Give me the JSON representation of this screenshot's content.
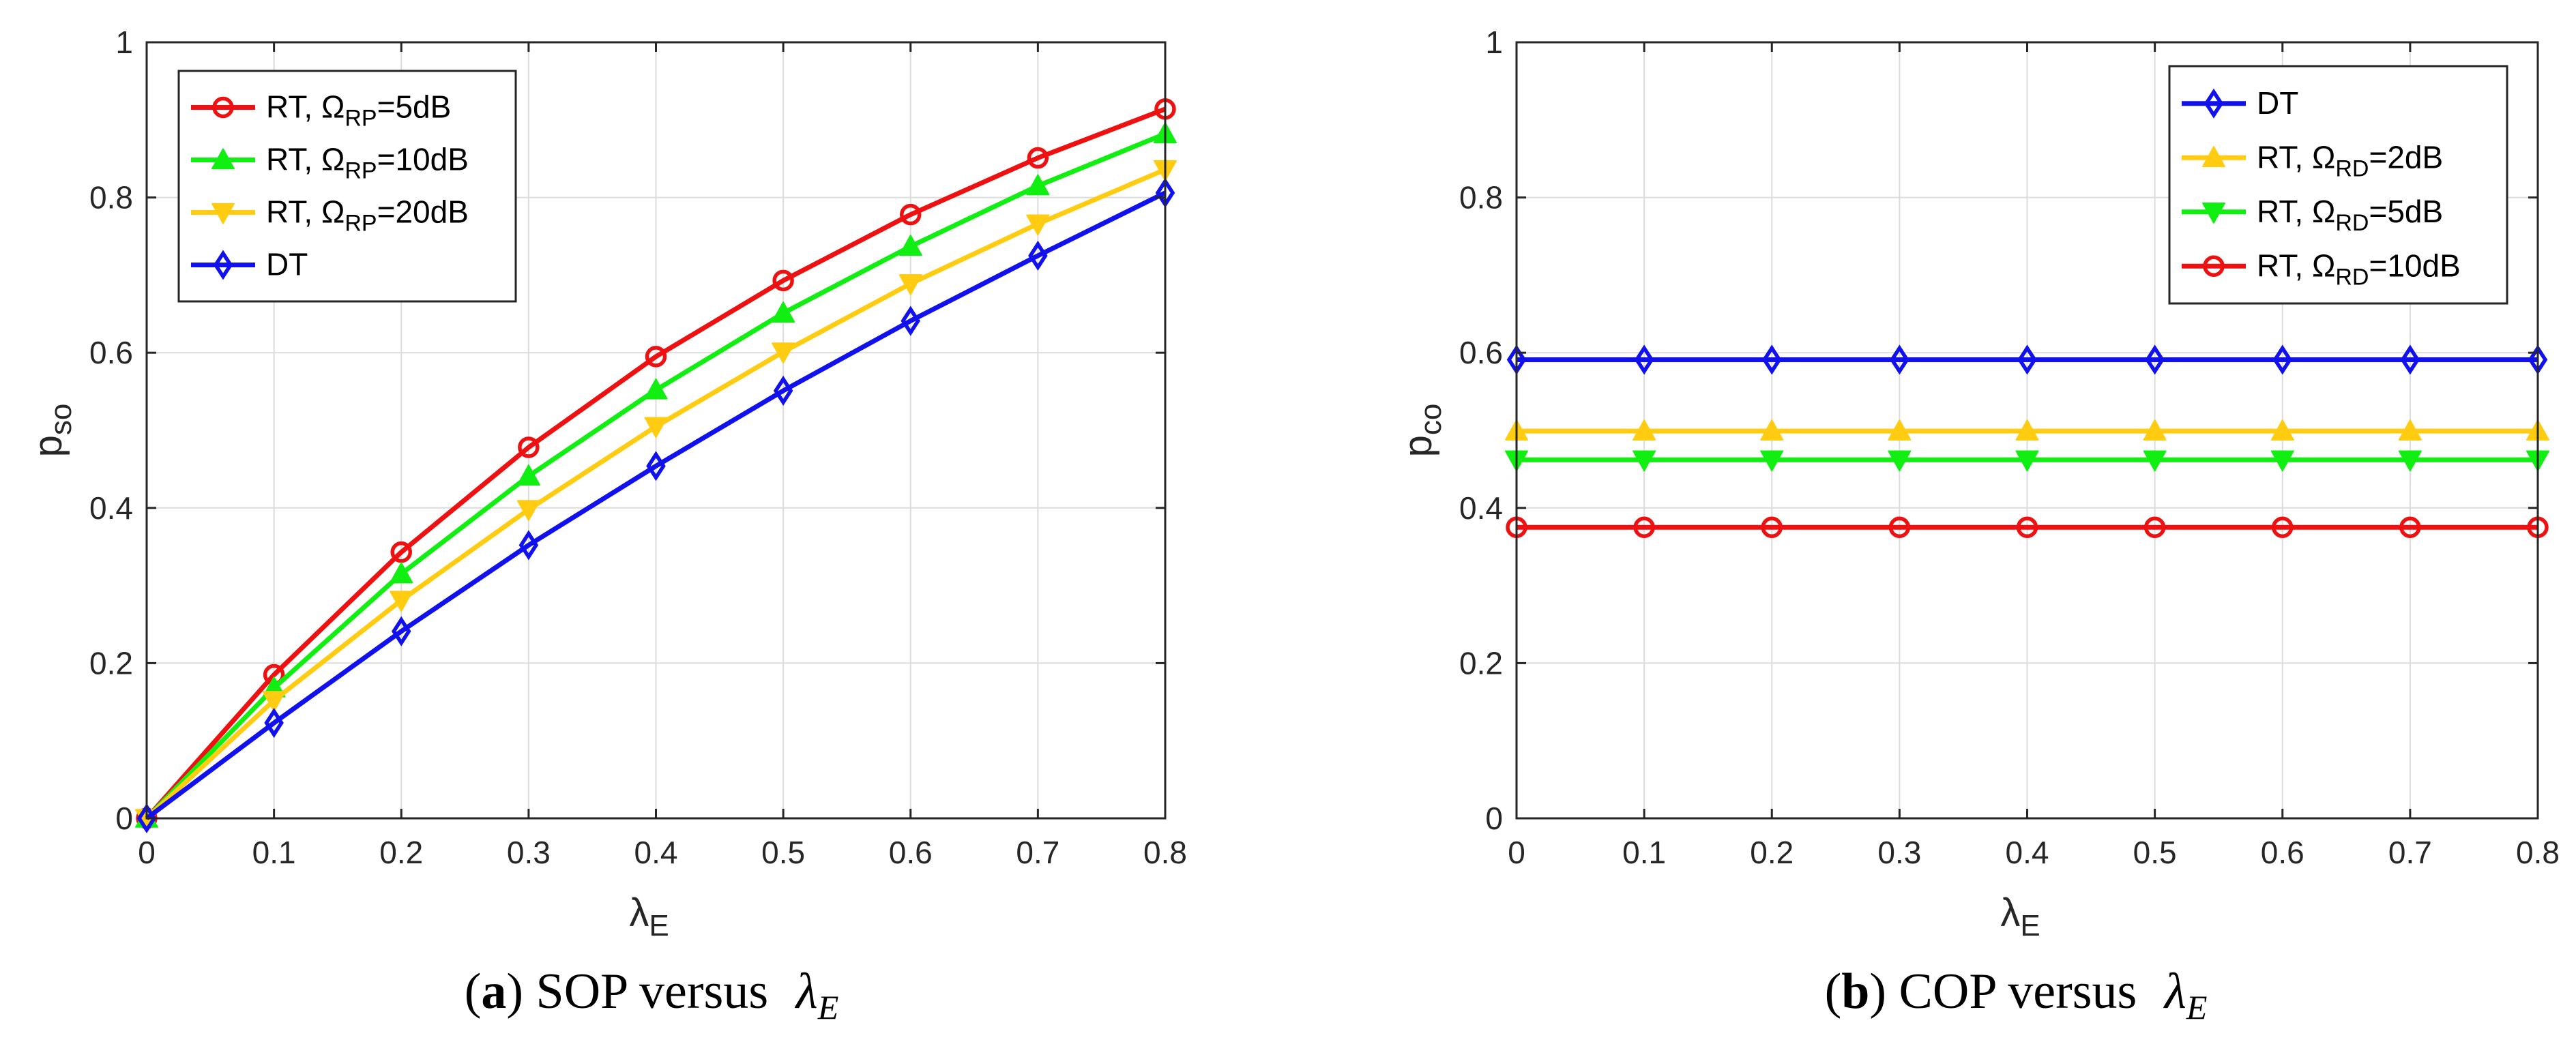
{
  "chart_data": [
    {
      "type": "line",
      "panel_label": "a",
      "caption_text": " SOP versus ",
      "caption_symbol": "λ",
      "caption_sub": "E",
      "xlabel": "λ",
      "xlabel_sub": "E",
      "ylabel": "p",
      "ylabel_sub": "so",
      "xlim": [
        0,
        0.8
      ],
      "ylim": [
        0,
        1
      ],
      "x_ticks": [
        "0",
        "0.1",
        "0.2",
        "0.3",
        "0.4",
        "0.5",
        "0.6",
        "0.7",
        "0.8"
      ],
      "y_ticks": [
        "0",
        "0.2",
        "0.4",
        "0.6",
        "0.8",
        "1"
      ],
      "grid": true,
      "legend_position": "top-left",
      "x": [
        0,
        0.1,
        0.2,
        0.3,
        0.4,
        0.5,
        0.6,
        0.7,
        0.8
      ],
      "series": [
        {
          "name": "RT,  Ω=5dB",
          "label_parts": [
            "RT,  Ω",
            "RP",
            "=5dB"
          ],
          "color": "#ee1111",
          "marker": "circle",
          "values": [
            0,
            0.185,
            0.343,
            0.478,
            0.595,
            0.693,
            0.778,
            0.851,
            0.914
          ]
        },
        {
          "name": "RT, Ω=10dB",
          "label_parts": [
            "RT, Ω",
            "RP",
            "=10dB"
          ],
          "color": "#11ee11",
          "marker": "triangle-up",
          "values": [
            0,
            0.168,
            0.315,
            0.441,
            0.552,
            0.651,
            0.737,
            0.815,
            0.882
          ]
        },
        {
          "name": "RT, Ω=20dB",
          "label_parts": [
            "RT, Ω",
            "RP",
            "=20dB"
          ],
          "color": "#ffcc11",
          "marker": "triangle-down",
          "values": [
            0,
            0.152,
            0.281,
            0.398,
            0.505,
            0.601,
            0.689,
            0.766,
            0.836
          ]
        },
        {
          "name": "DT",
          "label_parts": [
            "DT",
            "",
            ""
          ],
          "color": "#1111ee",
          "marker": "diamond",
          "values": [
            0,
            0.123,
            0.241,
            0.352,
            0.454,
            0.551,
            0.641,
            0.725,
            0.806
          ]
        }
      ]
    },
    {
      "type": "line",
      "panel_label": "b",
      "caption_text": " COP versus ",
      "caption_symbol": "λ",
      "caption_sub": "E",
      "xlabel": "λ",
      "xlabel_sub": "E",
      "ylabel": "p",
      "ylabel_sub": "co",
      "xlim": [
        0,
        0.8
      ],
      "ylim": [
        0,
        1
      ],
      "x_ticks": [
        "0",
        "0.1",
        "0.2",
        "0.3",
        "0.4",
        "0.5",
        "0.6",
        "0.7",
        "0.8"
      ],
      "y_ticks": [
        "0",
        "0.2",
        "0.4",
        "0.6",
        "0.8",
        "1"
      ],
      "grid": true,
      "legend_position": "top-right",
      "x": [
        0,
        0.1,
        0.2,
        0.3,
        0.4,
        0.5,
        0.6,
        0.7,
        0.8
      ],
      "series": [
        {
          "name": "DT",
          "label_parts": [
            "DT",
            "",
            ""
          ],
          "color": "#1111ee",
          "marker": "diamond",
          "values": [
            0.591,
            0.591,
            0.591,
            0.591,
            0.591,
            0.591,
            0.591,
            0.591,
            0.591
          ]
        },
        {
          "name": "RT,  Ω=2dB",
          "label_parts": [
            "RT,  Ω",
            "RD",
            "=2dB"
          ],
          "color": "#ffcc11",
          "marker": "triangle-up",
          "values": [
            0.499,
            0.499,
            0.499,
            0.499,
            0.499,
            0.499,
            0.499,
            0.499,
            0.499
          ]
        },
        {
          "name": "RT,  Ω=5dB",
          "label_parts": [
            "RT,  Ω",
            "RD",
            "=5dB"
          ],
          "color": "#11ee11",
          "marker": "triangle-down",
          "values": [
            0.462,
            0.462,
            0.462,
            0.462,
            0.462,
            0.462,
            0.462,
            0.462,
            0.462
          ]
        },
        {
          "name": "RT, Ω=10dB",
          "label_parts": [
            "RT, Ω",
            "RD",
            "=10dB"
          ],
          "color": "#ee1111",
          "marker": "circle",
          "values": [
            0.375,
            0.375,
            0.375,
            0.375,
            0.375,
            0.375,
            0.375,
            0.375,
            0.375
          ]
        }
      ]
    }
  ]
}
